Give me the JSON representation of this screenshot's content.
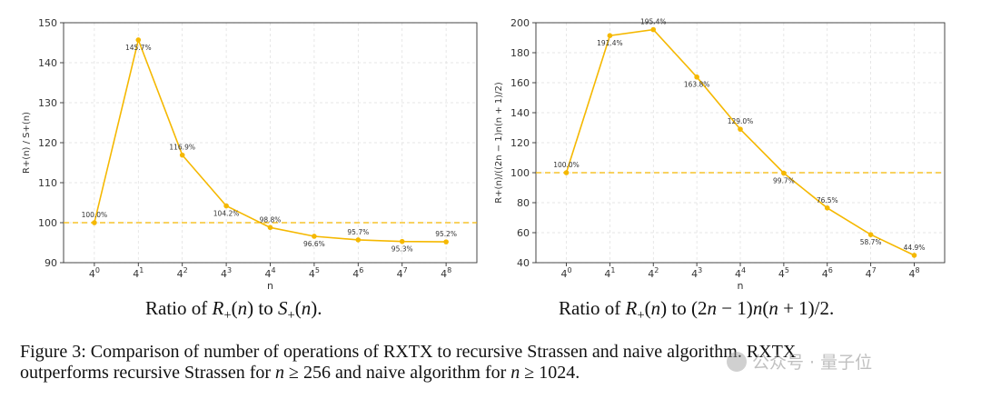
{
  "colors": {
    "series": "#f5b800",
    "reference": "#f5b800",
    "grid": "#dddddd",
    "axis": "#333333"
  },
  "chart_data": [
    {
      "type": "line",
      "x": [
        "4^0",
        "4^1",
        "4^2",
        "4^3",
        "4^4",
        "4^5",
        "4^6",
        "4^7",
        "4^8"
      ],
      "values": [
        100.0,
        145.7,
        116.9,
        104.2,
        98.8,
        96.6,
        95.7,
        95.3,
        95.2
      ],
      "labels": [
        "100.0%",
        "145.7%",
        "116.9%",
        "104.2%",
        "98.8%",
        "96.6%",
        "95.7%",
        "95.3%",
        "95.2%"
      ],
      "label_side": [
        "above",
        "below",
        "above",
        "below",
        "above",
        "below",
        "above",
        "below",
        "above"
      ],
      "xlabel": "n",
      "ylabel": "R+(n) / S+(n)",
      "ylim": [
        90,
        150
      ],
      "yticks": [
        90,
        100,
        110,
        120,
        130,
        140,
        150
      ],
      "reference_line": 100,
      "grid": true,
      "caption": {
        "prefix": "Ratio of ",
        "mid": " to ",
        "suffix": "."
      }
    },
    {
      "type": "line",
      "x": [
        "4^0",
        "4^1",
        "4^2",
        "4^3",
        "4^4",
        "4^5",
        "4^6",
        "4^7",
        "4^8"
      ],
      "values": [
        100.0,
        191.4,
        195.4,
        163.8,
        129.0,
        99.7,
        76.5,
        58.7,
        44.9
      ],
      "labels": [
        "100.0%",
        "191.4%",
        "195.4%",
        "163.8%",
        "129.0%",
        "99.7%",
        "76.5%",
        "58.7%",
        "44.9%"
      ],
      "label_side": [
        "above",
        "below",
        "above",
        "below",
        "above",
        "below",
        "above",
        "below",
        "above"
      ],
      "xlabel": "n",
      "ylabel": "R+(n)/((2n − 1)n(n + 1)/2)",
      "ylim": [
        40,
        200
      ],
      "yticks": [
        40,
        60,
        80,
        100,
        120,
        140,
        160,
        180,
        200
      ],
      "reference_line": 100,
      "grid": true,
      "caption": {
        "prefix": "Ratio of ",
        "mid": " to ",
        "suffix": "."
      }
    }
  ],
  "figure_caption": {
    "label": "Figure 3:",
    "line1": "Comparison of number of operations of RXTX to recursive Strassen and naive algorithm. RXTX",
    "line2_a": "outperforms recursive Strassen for",
    "line2_b": "≥ 256 and naive algorithm for",
    "line2_c": "≥ 1024."
  },
  "watermark": {
    "text": "公众号 · 量子位"
  }
}
